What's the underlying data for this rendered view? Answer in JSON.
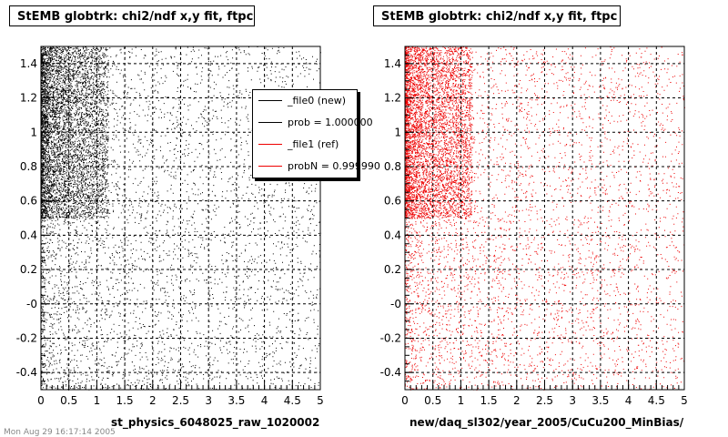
{
  "colors": {
    "new": "#000000",
    "ref": "#ee0000"
  },
  "legend": [
    {
      "label": "_file0 (new)",
      "color": "#000000"
    },
    {
      "label": "prob = 1.000000",
      "color": "#000000"
    },
    {
      "label": "_file1 (ref)",
      "color": "#ee0000"
    },
    {
      "label": "probN = 0.999990",
      "color": "#ee0000"
    }
  ],
  "footer": "Mon Aug 29 16:17:14 2005",
  "chart_data": [
    {
      "type": "scatter",
      "title": "StEMB globtrk: chi2/ndf x,y fit, ftpc",
      "xlabel": "st_physics_6048025_raw_1020002",
      "ylabel": "",
      "xlim": [
        0,
        5
      ],
      "ylim": [
        -0.5,
        1.5
      ],
      "xticks": [
        "0",
        "0.5",
        "1",
        "1.5",
        "2",
        "2.5",
        "3",
        "3.5",
        "4",
        "4.5",
        "5"
      ],
      "yticks": [
        "-0.4",
        "-0.2",
        "-0",
        "0.2",
        "0.4",
        "0.6",
        "0.8",
        "1",
        "1.2",
        "1.4"
      ],
      "grid": true,
      "series": [
        {
          "color": "#000000",
          "points": 9000,
          "dense_region": {
            "x": [
              0,
              1.2
            ],
            "y": [
              0.5,
              1.5
            ]
          }
        }
      ],
      "legend_position": "top-right"
    },
    {
      "type": "scatter",
      "title": "StEMB globtrk: chi2/ndf x,y fit, ftpc",
      "xlabel": "new/daq_sl302/year_2005/CuCu200_MinBias/",
      "ylabel": "",
      "xlim": [
        0,
        5
      ],
      "ylim": [
        -0.5,
        1.5
      ],
      "xticks": [
        "0",
        "0.5",
        "1",
        "1.5",
        "2",
        "2.5",
        "3",
        "3.5",
        "4",
        "4.5",
        "5"
      ],
      "yticks": [
        "-0.4",
        "-0.2",
        "-0",
        "0.2",
        "0.4",
        "0.6",
        "0.8",
        "1",
        "1.2",
        "1.4"
      ],
      "grid": true,
      "series": [
        {
          "color": "#ee0000",
          "points": 9000,
          "dense_region": {
            "x": [
              0,
              1.2
            ],
            "y": [
              0.5,
              1.5
            ]
          }
        }
      ]
    }
  ]
}
